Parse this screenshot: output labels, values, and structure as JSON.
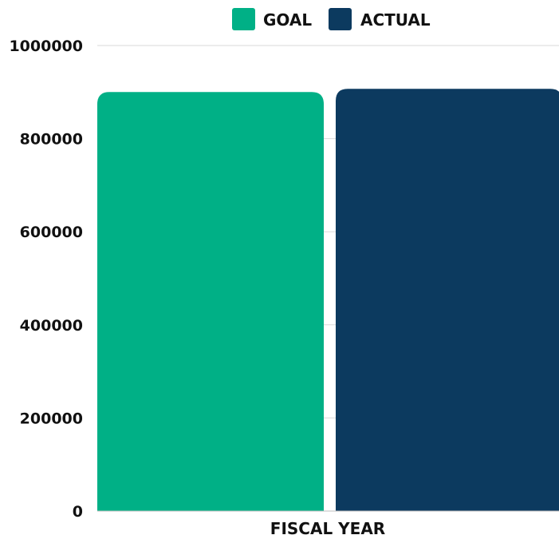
{
  "chart_data": {
    "type": "bar",
    "categories": [
      "FISCAL YEAR"
    ],
    "series": [
      {
        "name": "GOAL",
        "values": [
          900000
        ],
        "color": "#00b086"
      },
      {
        "name": "ACTUAL",
        "values": [
          907000
        ],
        "color": "#0c3a5f"
      }
    ],
    "ylim": [
      0,
      1000000
    ],
    "yticks": [
      "0",
      "200000",
      "400000",
      "600000",
      "800000",
      "1000000"
    ],
    "yticks_values": [
      0,
      200000,
      400000,
      600000,
      800000,
      1000000
    ],
    "grid": true,
    "legend_position": "top-center"
  }
}
